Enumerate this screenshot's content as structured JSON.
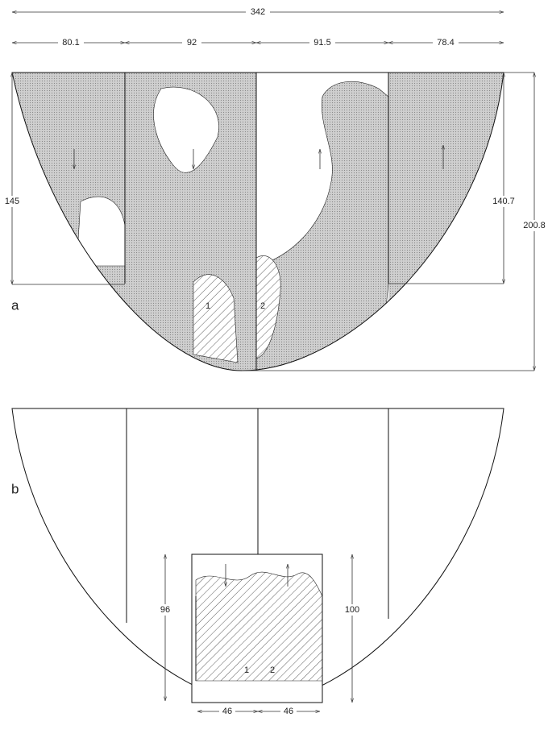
{
  "panel_a": {
    "label": "a",
    "total_width": "342",
    "widths": [
      "80.1",
      "92",
      "91.5",
      "78.4"
    ],
    "left_height": "145",
    "right_height": "140.7",
    "total_height": "200.8",
    "regions": [
      "1",
      "2"
    ]
  },
  "panel_b": {
    "label": "b",
    "left_height": "96",
    "right_height": "100",
    "widths": [
      "46",
      "46"
    ],
    "regions": [
      "1",
      "2"
    ]
  }
}
